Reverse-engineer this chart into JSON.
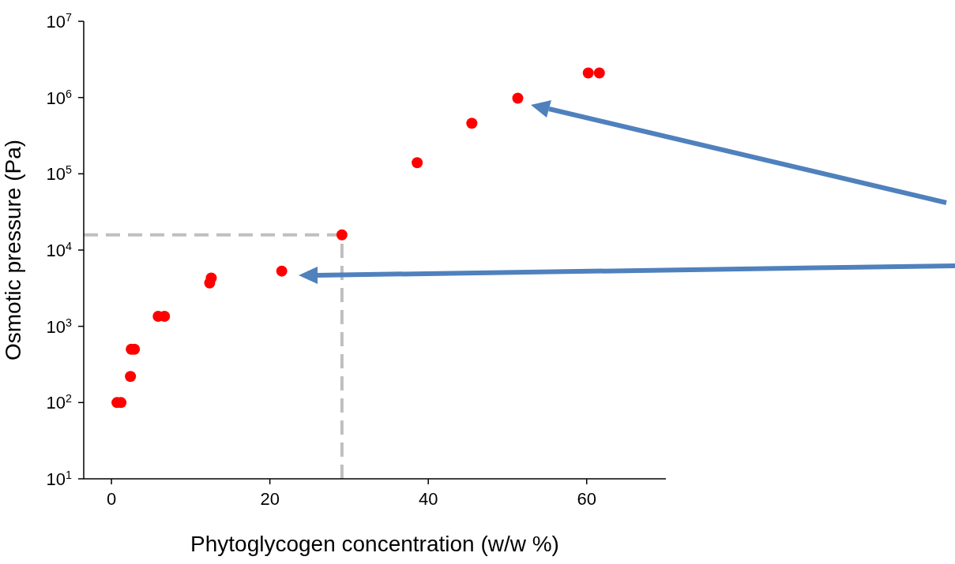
{
  "chart_data": {
    "type": "scatter",
    "xlabel": "Phytoglycogen concentration (w/w %)",
    "ylabel": "Osmotic pressure (Pa)",
    "x": [
      0.7,
      1.2,
      2.4,
      2.5,
      2.9,
      5.9,
      6.7,
      12.4,
      12.6,
      21.5,
      29.1,
      38.6,
      45.5,
      51.3,
      60.2,
      61.6
    ],
    "values": [
      100,
      100,
      220,
      500,
      500,
      1350,
      1350,
      3700,
      4300,
      5300,
      15800,
      140000,
      460000,
      980000,
      2100000,
      2100000
    ],
    "color": "#ff0000",
    "marker": "circle",
    "log": "y",
    "xlim": [
      -3.5,
      70
    ],
    "xticks": [
      0,
      20,
      40,
      60
    ],
    "ylim": [
      10,
      10000000
    ],
    "yticks": [
      {
        "value": 10,
        "label": "10$^{1}$"
      },
      {
        "value": 100,
        "label": "10$^{2}$"
      },
      {
        "value": 1000,
        "label": "10$^{3}$"
      },
      {
        "value": 10000,
        "label": "10$^{4}$"
      },
      {
        "value": 100000,
        "label": "10$^{5}$"
      },
      {
        "value": 1000000,
        "label": "10$^{6}$"
      },
      {
        "value": 10000000,
        "label": "10$^{7}$"
      }
    ],
    "grid": false,
    "ref_lines": [
      {
        "axis": "x",
        "value": 29.1,
        "color": "#bfbfbf",
        "line_style": "dashed"
      },
      {
        "axis": "y",
        "value": 15800,
        "color": "#bfbfbf",
        "line_style": "dashed"
      }
    ]
  }
}
